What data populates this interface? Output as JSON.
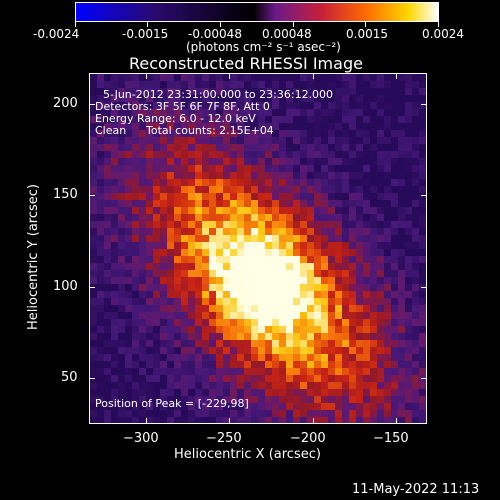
{
  "colorbar": {
    "ticks": [
      "-0.0024",
      "-0.0015",
      "-0.00048",
      "0.00048",
      "0.0015",
      "0.0024"
    ],
    "units": "(photons cm⁻² s⁻¹ asec⁻²)",
    "colors": [
      "#0000ff",
      "#2a0a6e",
      "#000000",
      "#7a1e8a",
      "#d22a1e",
      "#ff8a00",
      "#ffe800",
      "#ffffff"
    ]
  },
  "plot": {
    "title": "Reconstructed RHESSI Image",
    "info": {
      "time_range": "5-Jun-2012 23:31:00.000 to 23:36:12.000",
      "detectors": "Detectors: 3F 5F 6F 7F 8F, Att 0",
      "energy": "Energy Range: 6.0 - 12.0 keV",
      "clean": "Clean",
      "counts": "Total counts: 2.15E+04",
      "peak": "Position of Peak = [-229,98]"
    },
    "xlabel": "Heliocentric X (arcsec)",
    "ylabel": "Heliocentric Y (arcsec)",
    "xticks": [
      "−300",
      "−250",
      "−200",
      "−150"
    ],
    "yticks": [
      "200",
      "150",
      "100",
      "50"
    ]
  },
  "footer": {
    "date": "11-May-2022 11:13"
  }
}
